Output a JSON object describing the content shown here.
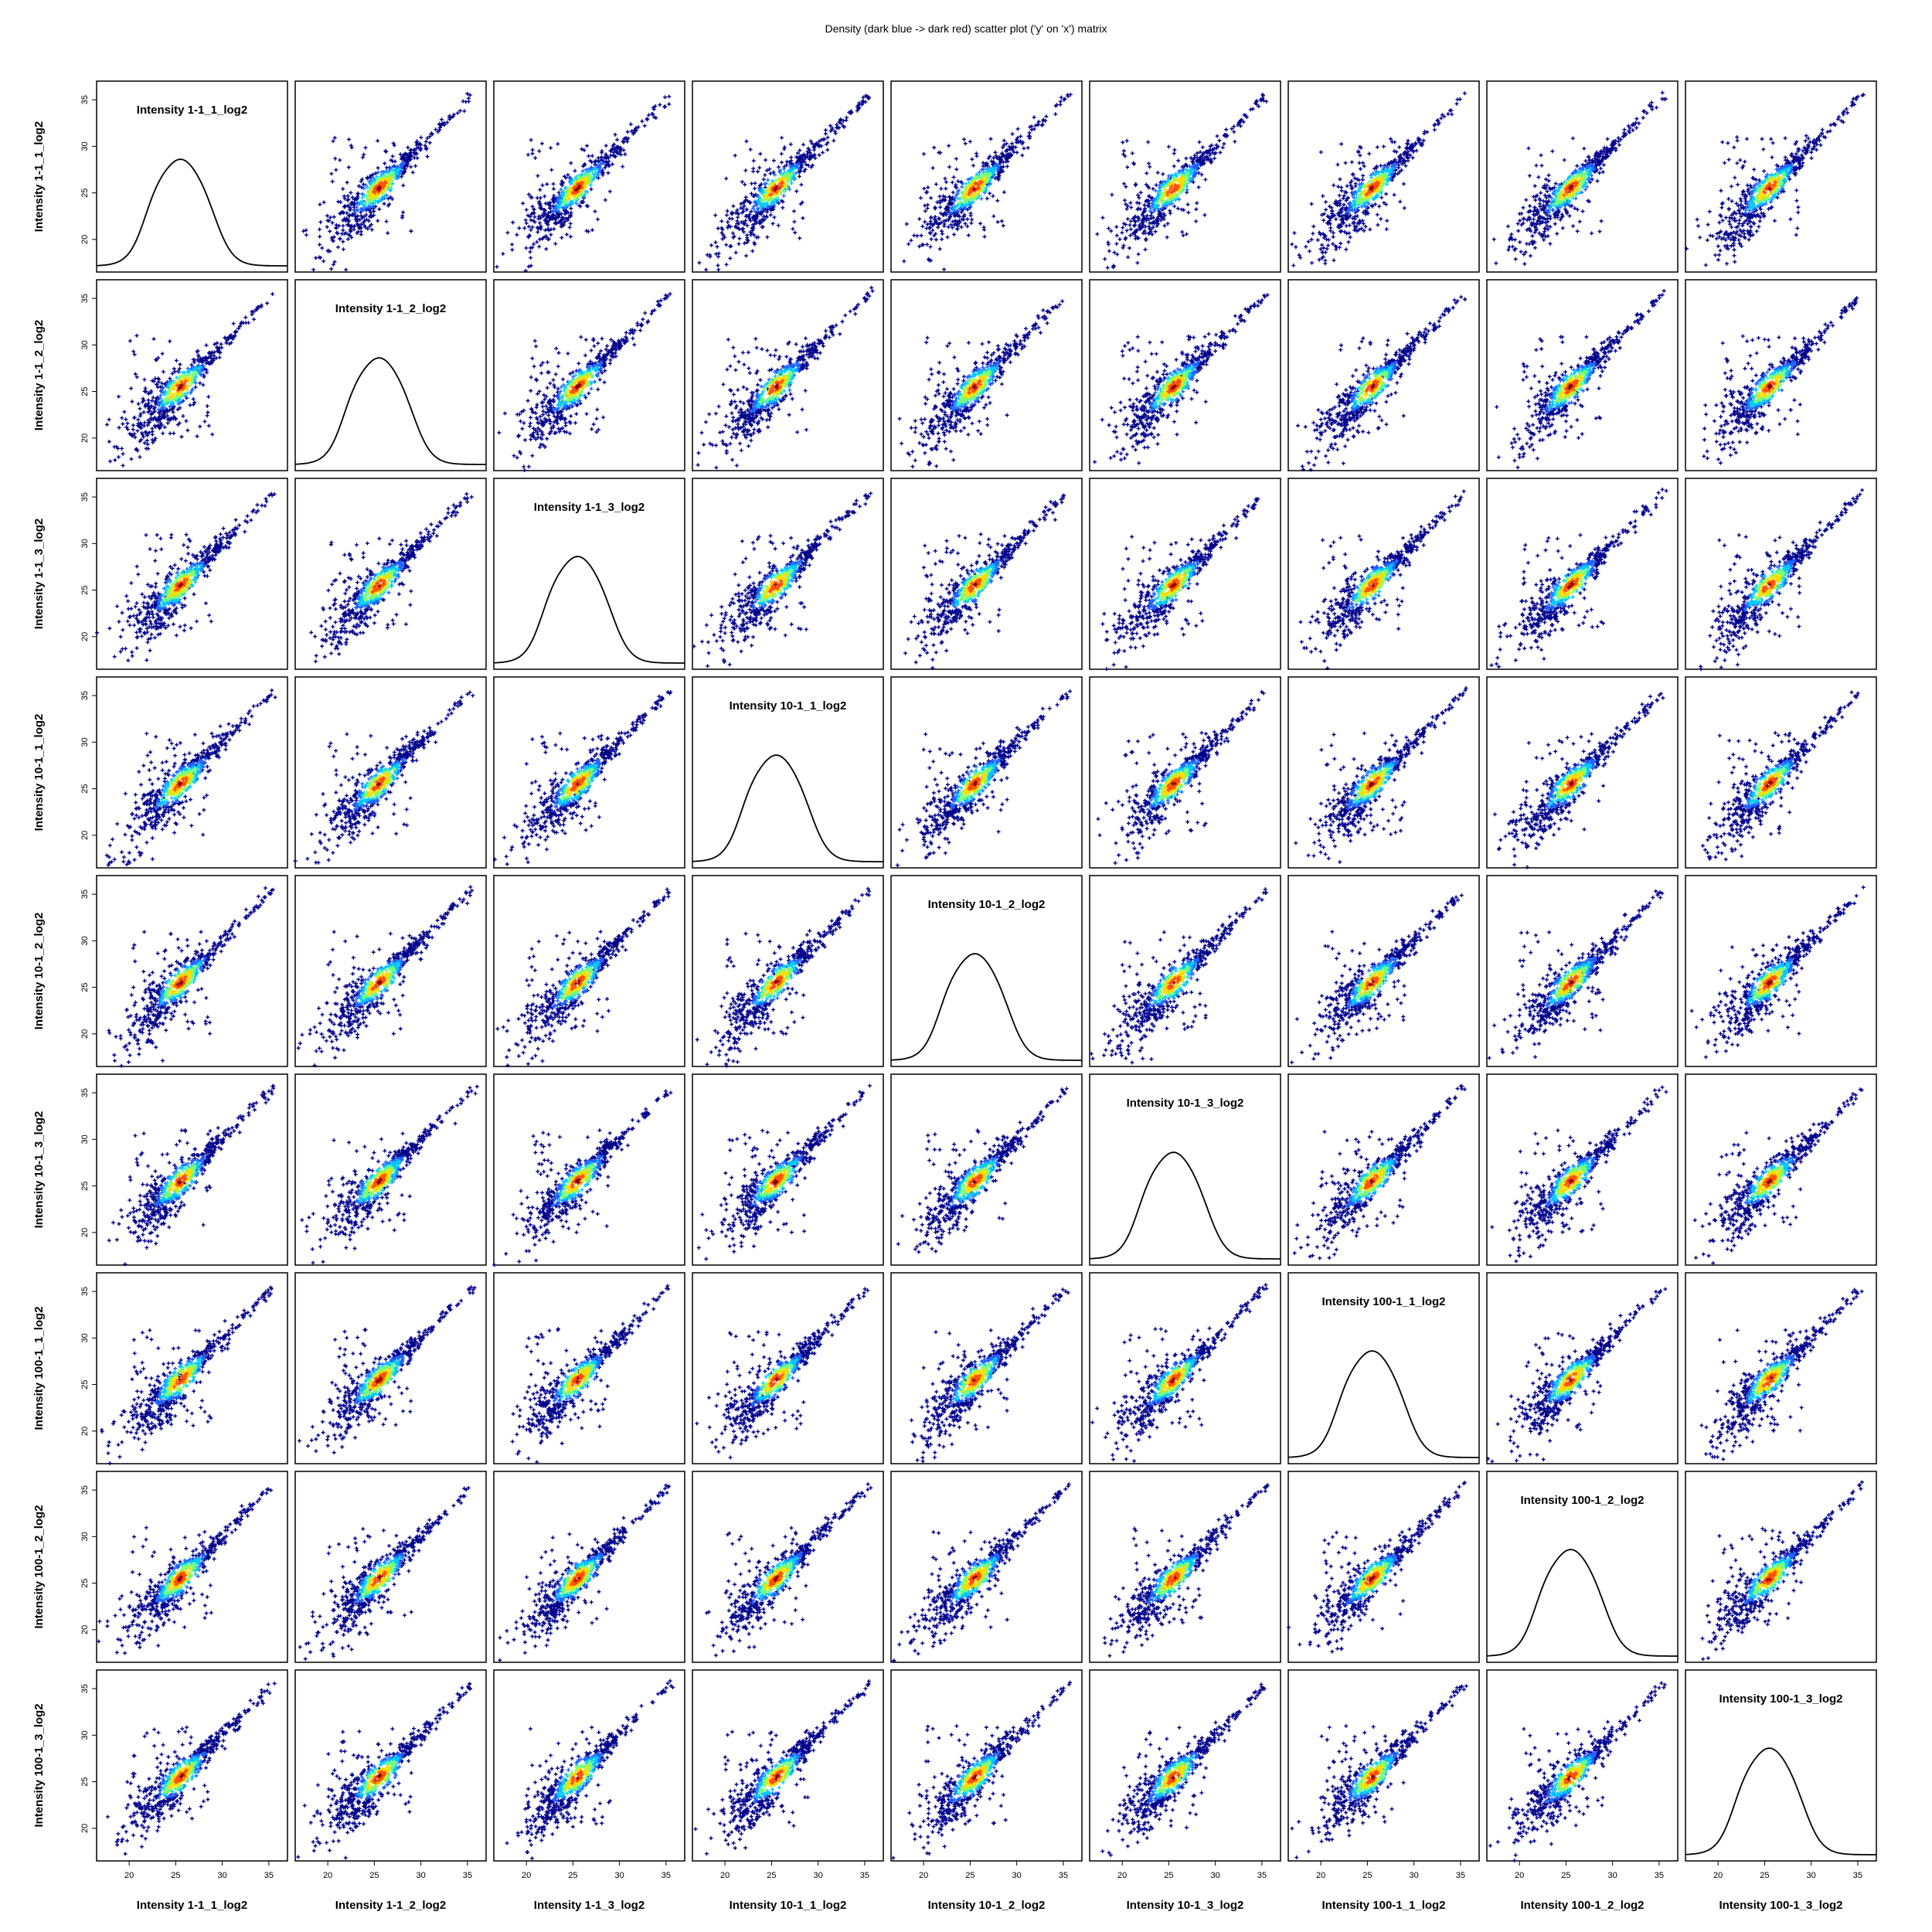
{
  "chart_data": {
    "type": "scatter",
    "title": "Density (dark blue -> dark red) scatter plot ('y' on 'x') matrix",
    "variables": [
      "Intensity 1-1_1_log2",
      "Intensity 1-1_2_log2",
      "Intensity 1-1_3_log2",
      "Intensity 10-1_1_log2",
      "Intensity 10-1_2_log2",
      "Intensity 10-1_3_log2",
      "Intensity 100-1_1_log2",
      "Intensity 100-1_2_log2",
      "Intensity 100-1_3_log2"
    ],
    "x_ticks": [
      20,
      25,
      30,
      35
    ],
    "y_ticks": [
      20,
      25,
      30,
      35
    ],
    "xlim": [
      16.5,
      37
    ],
    "ylim": [
      16.5,
      37
    ],
    "grid": false,
    "density_color_scale": [
      "#00008b",
      "#1e64ff",
      "#00c8ff",
      "#78ff78",
      "#ffdc00",
      "#ff5000",
      "#8b0000"
    ],
    "diagonal_type": "density_curve",
    "density_curve_peak_x": 25.5
  }
}
